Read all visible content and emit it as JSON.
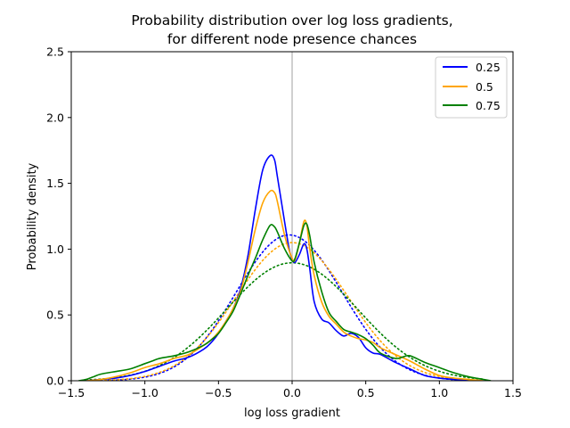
{
  "chart_data": {
    "type": "line",
    "title_lines": [
      "Probability distribution over log loss gradients,",
      "for different node presence chances"
    ],
    "xlabel": "log loss gradient",
    "ylabel": "Probability density",
    "xlim": [
      -1.5,
      1.5
    ],
    "ylim": [
      0,
      2.5
    ],
    "xticks": [
      -1.5,
      -1.0,
      -0.5,
      0.0,
      0.5,
      1.0,
      1.5
    ],
    "xtick_labels": [
      "−1.5",
      "−1.0",
      "−0.5",
      "0.0",
      "0.5",
      "1.0",
      "1.5"
    ],
    "yticks": [
      0.0,
      0.5,
      1.0,
      1.5,
      2.0,
      2.5
    ],
    "ytick_labels": [
      "0.0",
      "0.5",
      "1.0",
      "1.5",
      "2.0",
      "2.5"
    ],
    "grid": false,
    "vline_x": 0.0,
    "vline_color": "#c0c0c0",
    "legend_position": "top-right",
    "series": [
      {
        "name": "0.25",
        "color": "#0000ff",
        "x": [
          -1.4,
          -1.3,
          -1.2,
          -1.1,
          -1.0,
          -0.9,
          -0.8,
          -0.7,
          -0.6,
          -0.55,
          -0.5,
          -0.45,
          -0.4,
          -0.35,
          -0.3,
          -0.25,
          -0.2,
          -0.15,
          -0.12,
          -0.1,
          -0.05,
          -0.02,
          0.0,
          0.02,
          0.05,
          0.08,
          0.1,
          0.12,
          0.15,
          0.2,
          0.25,
          0.3,
          0.35,
          0.4,
          0.45,
          0.5,
          0.55,
          0.6,
          0.7,
          0.8,
          0.9,
          1.0,
          1.1,
          1.2
        ],
        "y": [
          0.0,
          0.01,
          0.02,
          0.04,
          0.07,
          0.11,
          0.15,
          0.18,
          0.24,
          0.29,
          0.36,
          0.45,
          0.55,
          0.7,
          0.95,
          1.3,
          1.6,
          1.71,
          1.68,
          1.55,
          1.2,
          1.0,
          0.92,
          0.9,
          0.96,
          1.04,
          1.0,
          0.85,
          0.6,
          0.47,
          0.44,
          0.38,
          0.34,
          0.36,
          0.33,
          0.25,
          0.21,
          0.2,
          0.14,
          0.09,
          0.04,
          0.02,
          0.01,
          0.0
        ]
      },
      {
        "name": "0.5",
        "color": "#ffa500",
        "x": [
          -1.4,
          -1.3,
          -1.2,
          -1.1,
          -1.0,
          -0.9,
          -0.8,
          -0.7,
          -0.6,
          -0.55,
          -0.5,
          -0.45,
          -0.4,
          -0.35,
          -0.3,
          -0.25,
          -0.2,
          -0.15,
          -0.12,
          -0.1,
          -0.05,
          0.0,
          0.02,
          0.05,
          0.08,
          0.1,
          0.12,
          0.15,
          0.2,
          0.25,
          0.3,
          0.35,
          0.4,
          0.45,
          0.5,
          0.55,
          0.6,
          0.7,
          0.8,
          0.9,
          1.0,
          1.1,
          1.2,
          1.3
        ],
        "y": [
          0.0,
          0.01,
          0.03,
          0.06,
          0.1,
          0.13,
          0.17,
          0.2,
          0.27,
          0.31,
          0.37,
          0.45,
          0.55,
          0.68,
          0.9,
          1.15,
          1.35,
          1.44,
          1.43,
          1.36,
          1.1,
          0.93,
          0.92,
          1.05,
          1.21,
          1.18,
          1.0,
          0.8,
          0.6,
          0.49,
          0.43,
          0.37,
          0.34,
          0.32,
          0.31,
          0.29,
          0.25,
          0.2,
          0.15,
          0.09,
          0.04,
          0.02,
          0.01,
          0.0
        ]
      },
      {
        "name": "0.75",
        "color": "#008000",
        "x": [
          -1.45,
          -1.4,
          -1.35,
          -1.3,
          -1.2,
          -1.1,
          -1.0,
          -0.95,
          -0.9,
          -0.8,
          -0.7,
          -0.6,
          -0.55,
          -0.5,
          -0.45,
          -0.4,
          -0.35,
          -0.3,
          -0.25,
          -0.2,
          -0.15,
          -0.12,
          -0.1,
          -0.05,
          0.0,
          0.02,
          0.05,
          0.08,
          0.1,
          0.12,
          0.15,
          0.2,
          0.25,
          0.3,
          0.35,
          0.4,
          0.45,
          0.5,
          0.55,
          0.6,
          0.7,
          0.75,
          0.8,
          0.9,
          1.0,
          1.1,
          1.2,
          1.3,
          1.35
        ],
        "y": [
          0.0,
          0.01,
          0.03,
          0.05,
          0.07,
          0.09,
          0.13,
          0.15,
          0.17,
          0.19,
          0.22,
          0.27,
          0.31,
          0.36,
          0.44,
          0.53,
          0.66,
          0.8,
          0.93,
          1.07,
          1.18,
          1.17,
          1.13,
          1.0,
          0.91,
          0.93,
          1.05,
          1.18,
          1.19,
          1.1,
          0.9,
          0.68,
          0.52,
          0.45,
          0.39,
          0.37,
          0.35,
          0.32,
          0.27,
          0.21,
          0.17,
          0.18,
          0.19,
          0.14,
          0.1,
          0.06,
          0.03,
          0.01,
          0.0
        ]
      }
    ],
    "fitted_curves": [
      {
        "color": "#0000ff",
        "mean": -0.02,
        "std": 0.36,
        "x_range": [
          -1.25,
          1.15
        ]
      },
      {
        "color": "#ffa500",
        "mean": 0.0,
        "std": 0.38,
        "x_range": [
          -1.3,
          1.2
        ]
      },
      {
        "color": "#008000",
        "mean": 0.0,
        "std": 0.445,
        "x_range": [
          -1.4,
          1.3
        ]
      }
    ]
  }
}
